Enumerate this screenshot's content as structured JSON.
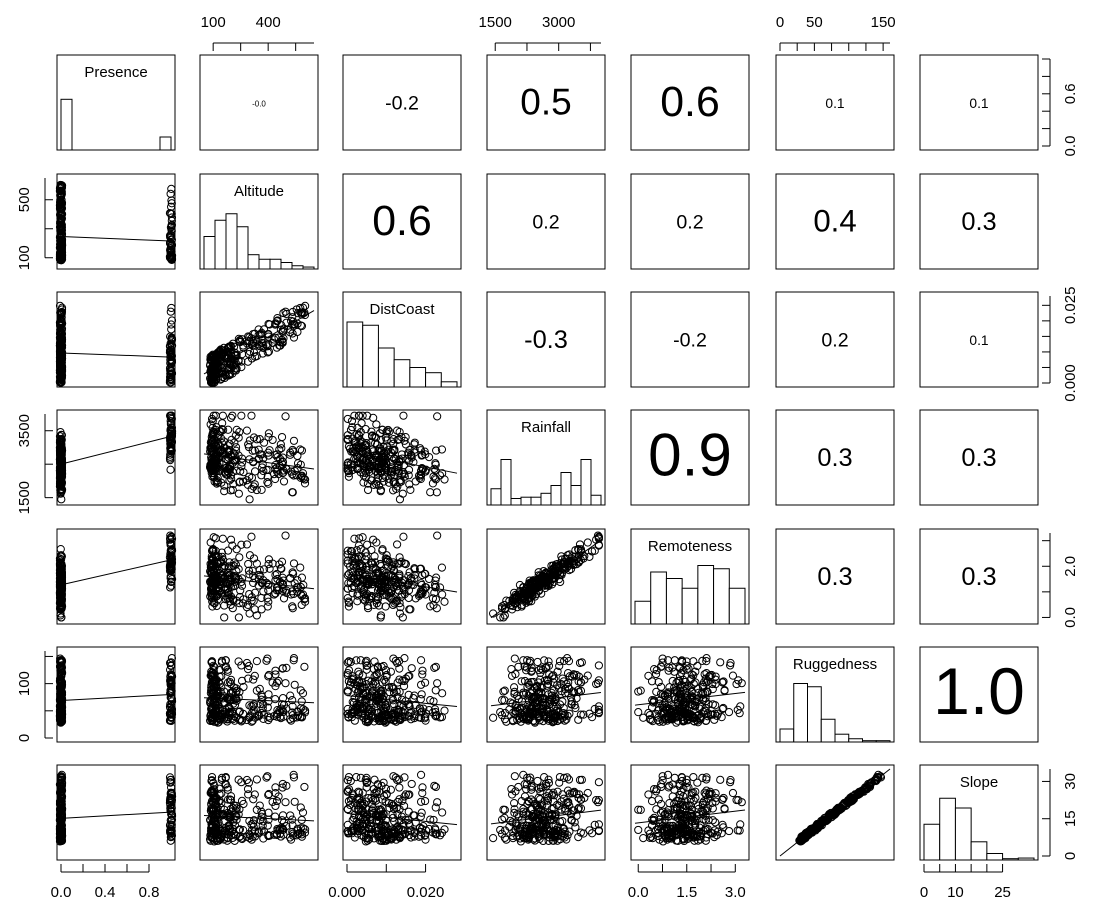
{
  "chart_data": {
    "type": "scatter-matrix",
    "variables": [
      "Presence",
      "Altitude",
      "DistCoast",
      "Rainfall",
      "Remoteness",
      "Ruggedness",
      "Slope"
    ],
    "ranges": {
      "Presence": [
        0,
        1
      ],
      "Altitude": [
        50,
        650
      ],
      "DistCoast": [
        0,
        0.028
      ],
      "Rainfall": [
        1400,
        4000
      ],
      "Remoteness": [
        -0.1,
        3.3
      ],
      "Ruggedness": [
        0,
        160
      ],
      "Slope": [
        0,
        35
      ]
    },
    "axis_ticks": {
      "Presence": [
        "0.0",
        "0.4",
        "0.8"
      ],
      "Presence_right": [
        "0.0",
        "0.6"
      ],
      "Altitude": [
        "100",
        "400"
      ],
      "Altitude_left": [
        "100",
        "500"
      ],
      "DistCoast": [
        "0.000",
        "0.020"
      ],
      "DistCoast_right": [
        "0.000",
        "0.025"
      ],
      "Rainfall": [
        "1500",
        "3000"
      ],
      "Rainfall_left": [
        "1500",
        "3500"
      ],
      "Remoteness": [
        "0.0",
        "1.5",
        "3.0"
      ],
      "Remoteness_right": [
        "0.0",
        "2.0"
      ],
      "Ruggedness": [
        "0",
        "50",
        "150"
      ],
      "Ruggedness_left": [
        "0",
        "100"
      ],
      "Slope": [
        "0",
        "10",
        "25"
      ],
      "Slope_right": [
        "0",
        "15",
        "30"
      ]
    },
    "correlations": [
      {
        "row": "Presence",
        "col": "Altitude",
        "value": "-0.0"
      },
      {
        "row": "Presence",
        "col": "DistCoast",
        "value": "-0.2"
      },
      {
        "row": "Presence",
        "col": "Rainfall",
        "value": "0.5"
      },
      {
        "row": "Presence",
        "col": "Remoteness",
        "value": "0.6"
      },
      {
        "row": "Presence",
        "col": "Ruggedness",
        "value": "0.1"
      },
      {
        "row": "Presence",
        "col": "Slope",
        "value": "0.1"
      },
      {
        "row": "Altitude",
        "col": "DistCoast",
        "value": "0.6"
      },
      {
        "row": "Altitude",
        "col": "Rainfall",
        "value": "0.2"
      },
      {
        "row": "Altitude",
        "col": "Remoteness",
        "value": "0.2"
      },
      {
        "row": "Altitude",
        "col": "Ruggedness",
        "value": "0.4"
      },
      {
        "row": "Altitude",
        "col": "Slope",
        "value": "0.3"
      },
      {
        "row": "DistCoast",
        "col": "Rainfall",
        "value": "-0.3"
      },
      {
        "row": "DistCoast",
        "col": "Remoteness",
        "value": "-0.2"
      },
      {
        "row": "DistCoast",
        "col": "Ruggedness",
        "value": "0.2"
      },
      {
        "row": "DistCoast",
        "col": "Slope",
        "value": "0.1"
      },
      {
        "row": "Rainfall",
        "col": "Remoteness",
        "value": "0.9"
      },
      {
        "row": "Rainfall",
        "col": "Ruggedness",
        "value": "0.3"
      },
      {
        "row": "Rainfall",
        "col": "Slope",
        "value": "0.3"
      },
      {
        "row": "Remoteness",
        "col": "Ruggedness",
        "value": "0.3"
      },
      {
        "row": "Remoteness",
        "col": "Slope",
        "value": "0.3"
      },
      {
        "row": "Ruggedness",
        "col": "Slope",
        "value": "1.0"
      }
    ],
    "histograms": {
      "Presence": [
        0.78,
        0,
        0,
        0,
        0,
        0,
        0,
        0,
        0,
        0.2
      ],
      "Altitude": [
        0.5,
        0.75,
        0.85,
        0.65,
        0.22,
        0.15,
        0.15,
        0.1,
        0.05,
        0.03
      ],
      "DistCoast": [
        1.0,
        0.95,
        0.6,
        0.42,
        0.3,
        0.22,
        0.08
      ],
      "Rainfall": [
        0.25,
        0.7,
        0.1,
        0.12,
        0.12,
        0.18,
        0.3,
        0.5,
        0.3,
        0.7,
        0.15
      ],
      "Remoteness": [
        0.35,
        0.8,
        0.7,
        0.55,
        0.9,
        0.85,
        0.55
      ],
      "Ruggedness": [
        0.2,
        0.9,
        0.85,
        0.35,
        0.12,
        0.05,
        0.02,
        0.02
      ],
      "Slope": [
        0.55,
        0.95,
        0.8,
        0.28,
        0.1,
        0.02,
        0.03
      ]
    },
    "grid": false,
    "legend": "none"
  }
}
